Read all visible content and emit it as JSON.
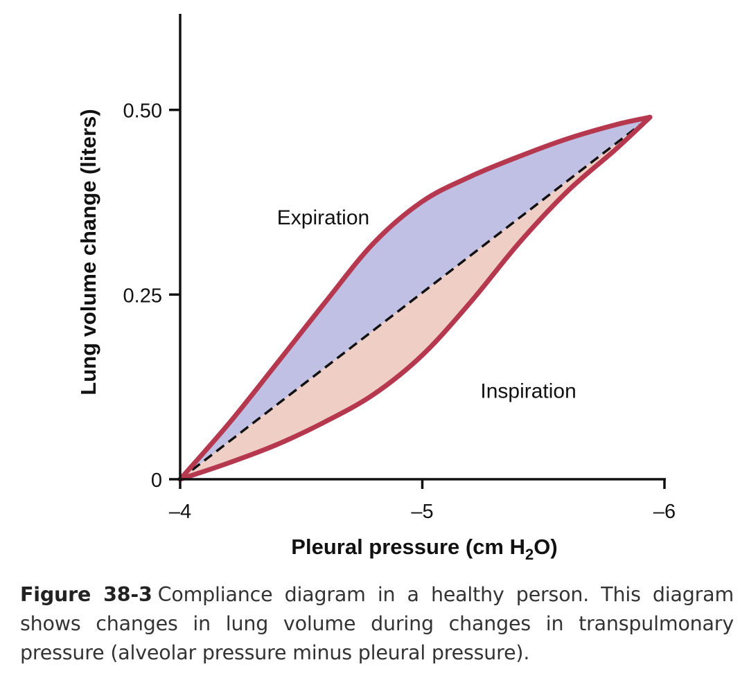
{
  "chart_data": {
    "type": "line",
    "xlabel": "Pleural pressure (cm H2O)",
    "xlabel_parts": {
      "pre": "Pleural pressure (cm H",
      "sub": "2",
      "post": "O)"
    },
    "ylabel": "Lung volume change (liters)",
    "xlim": [
      -4,
      -6
    ],
    "ylim": [
      0,
      0.63
    ],
    "x_ticks": [
      {
        "value": -4,
        "label": "–4"
      },
      {
        "value": -5,
        "label": "–5"
      },
      {
        "value": -6,
        "label": "–6"
      }
    ],
    "y_ticks": [
      {
        "value": 0,
        "label": "0"
      },
      {
        "value": 0.25,
        "label": "0.25"
      },
      {
        "value": 0.5,
        "label": "0.50"
      }
    ],
    "series": [
      {
        "name": "Expiration",
        "color": "#b5384f",
        "fill": "#bfc0e4",
        "points": [
          [
            -4.0,
            0.0
          ],
          [
            -4.2,
            0.075
          ],
          [
            -4.4,
            0.157
          ],
          [
            -4.6,
            0.24
          ],
          [
            -4.8,
            0.32
          ],
          [
            -5.0,
            0.376
          ],
          [
            -5.2,
            0.41
          ],
          [
            -5.4,
            0.437
          ],
          [
            -5.6,
            0.461
          ],
          [
            -5.8,
            0.48
          ],
          [
            -5.94,
            0.49
          ]
        ]
      },
      {
        "name": "Inspiration",
        "color": "#b5384f",
        "fill": "#efcec6",
        "points": [
          [
            -4.0,
            0.0
          ],
          [
            -4.2,
            0.022
          ],
          [
            -4.4,
            0.047
          ],
          [
            -4.6,
            0.078
          ],
          [
            -4.8,
            0.115
          ],
          [
            -5.0,
            0.168
          ],
          [
            -5.2,
            0.24
          ],
          [
            -5.4,
            0.32
          ],
          [
            -5.6,
            0.39
          ],
          [
            -5.8,
            0.447
          ],
          [
            -5.94,
            0.49
          ]
        ]
      }
    ],
    "reference_line": {
      "style": "dashed",
      "color": "#111111",
      "from": [
        -4.0,
        0.0
      ],
      "to": [
        -5.94,
        0.49
      ]
    },
    "annotations": [
      {
        "text": "Expiration",
        "x": -4.4,
        "y": 0.345
      },
      {
        "text": "Inspiration",
        "x": -5.24,
        "y": 0.11
      }
    ]
  },
  "caption": {
    "label": "Figure 38-3",
    "text": "Compliance diagram in a healthy person. This diagram shows changes in lung volume during changes in transpulmonary pressure (alveolar pressure minus pleural pressure)."
  }
}
